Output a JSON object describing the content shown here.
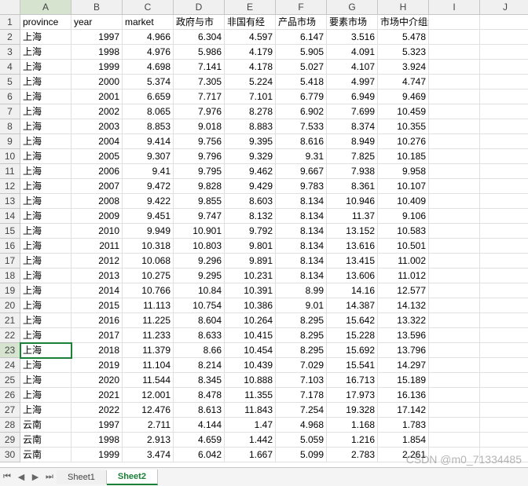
{
  "grid": {
    "col_labels": [
      "A",
      "B",
      "C",
      "D",
      "E",
      "F",
      "G",
      "H",
      "I",
      "J"
    ],
    "row_labels": [
      "1",
      "2",
      "3",
      "4",
      "5",
      "6",
      "7",
      "8",
      "9",
      "10",
      "11",
      "12",
      "13",
      "14",
      "15",
      "16",
      "17",
      "18",
      "19",
      "20",
      "21",
      "22",
      "23",
      "24",
      "25",
      "26",
      "27",
      "28",
      "29",
      "30"
    ],
    "selected_cell": {
      "row": 23,
      "col": 1
    },
    "headers": [
      "province",
      "year",
      "market",
      "政府与市",
      "非国有经",
      "产品市场",
      "要素市场",
      "市场中介组织的发育和法律制度",
      ""
    ],
    "rows": [
      [
        "上海",
        "1997",
        "4.966",
        "6.304",
        "4.597",
        "6.147",
        "3.516",
        "5.478",
        ""
      ],
      [
        "上海",
        "1998",
        "4.976",
        "5.986",
        "4.179",
        "5.905",
        "4.091",
        "5.323",
        ""
      ],
      [
        "上海",
        "1999",
        "4.698",
        "7.141",
        "4.178",
        "5.027",
        "4.107",
        "3.924",
        ""
      ],
      [
        "上海",
        "2000",
        "5.374",
        "7.305",
        "5.224",
        "5.418",
        "4.997",
        "4.747",
        ""
      ],
      [
        "上海",
        "2001",
        "6.659",
        "7.717",
        "7.101",
        "6.779",
        "6.949",
        "9.469",
        ""
      ],
      [
        "上海",
        "2002",
        "8.065",
        "7.976",
        "8.278",
        "6.902",
        "7.699",
        "10.459",
        ""
      ],
      [
        "上海",
        "2003",
        "8.853",
        "9.018",
        "8.883",
        "7.533",
        "8.374",
        "10.355",
        ""
      ],
      [
        "上海",
        "2004",
        "9.414",
        "9.756",
        "9.395",
        "8.616",
        "8.949",
        "10.276",
        ""
      ],
      [
        "上海",
        "2005",
        "9.307",
        "9.796",
        "9.329",
        "9.31",
        "7.825",
        "10.185",
        ""
      ],
      [
        "上海",
        "2006",
        "9.41",
        "9.795",
        "9.462",
        "9.667",
        "7.938",
        "9.958",
        ""
      ],
      [
        "上海",
        "2007",
        "9.472",
        "9.828",
        "9.429",
        "9.783",
        "8.361",
        "10.107",
        ""
      ],
      [
        "上海",
        "2008",
        "9.422",
        "9.855",
        "8.603",
        "8.134",
        "10.946",
        "10.409",
        ""
      ],
      [
        "上海",
        "2009",
        "9.451",
        "9.747",
        "8.132",
        "8.134",
        "11.37",
        "9.106",
        ""
      ],
      [
        "上海",
        "2010",
        "9.949",
        "10.901",
        "9.792",
        "8.134",
        "13.152",
        "10.583",
        ""
      ],
      [
        "上海",
        "2011",
        "10.318",
        "10.803",
        "9.801",
        "8.134",
        "13.616",
        "10.501",
        ""
      ],
      [
        "上海",
        "2012",
        "10.068",
        "9.296",
        "9.891",
        "8.134",
        "13.415",
        "11.002",
        ""
      ],
      [
        "上海",
        "2013",
        "10.275",
        "9.295",
        "10.231",
        "8.134",
        "13.606",
        "11.012",
        ""
      ],
      [
        "上海",
        "2014",
        "10.766",
        "10.84",
        "10.391",
        "8.99",
        "14.16",
        "12.577",
        ""
      ],
      [
        "上海",
        "2015",
        "11.113",
        "10.754",
        "10.386",
        "9.01",
        "14.387",
        "14.132",
        ""
      ],
      [
        "上海",
        "2016",
        "11.225",
        "8.604",
        "10.264",
        "8.295",
        "15.642",
        "13.322",
        ""
      ],
      [
        "上海",
        "2017",
        "11.233",
        "8.633",
        "10.415",
        "8.295",
        "15.228",
        "13.596",
        ""
      ],
      [
        "上海",
        "2018",
        "11.379",
        "8.66",
        "10.454",
        "8.295",
        "15.692",
        "13.796",
        ""
      ],
      [
        "上海",
        "2019",
        "11.104",
        "8.214",
        "10.439",
        "7.029",
        "15.541",
        "14.297",
        ""
      ],
      [
        "上海",
        "2020",
        "11.544",
        "8.345",
        "10.888",
        "7.103",
        "16.713",
        "15.189",
        ""
      ],
      [
        "上海",
        "2021",
        "12.001",
        "8.478",
        "11.355",
        "7.178",
        "17.973",
        "16.136",
        ""
      ],
      [
        "上海",
        "2022",
        "12.476",
        "8.613",
        "11.843",
        "7.254",
        "19.328",
        "17.142",
        ""
      ],
      [
        "云南",
        "1997",
        "2.711",
        "4.144",
        "1.47",
        "4.968",
        "1.168",
        "1.783",
        ""
      ],
      [
        "云南",
        "1998",
        "2.913",
        "4.659",
        "1.442",
        "5.059",
        "1.216",
        "1.854",
        ""
      ],
      [
        "云南",
        "1999",
        "3.474",
        "6.042",
        "1.667",
        "5.099",
        "2.783",
        "2.261",
        ""
      ]
    ]
  },
  "tabs": {
    "nav": {
      "first": "⏮",
      "prev": "◀",
      "next": "▶",
      "last": "⏭"
    },
    "items": [
      {
        "label": "Sheet1",
        "active": false
      },
      {
        "label": "Sheet2",
        "active": true
      }
    ]
  },
  "watermark": "CSDN @m0_71334485"
}
